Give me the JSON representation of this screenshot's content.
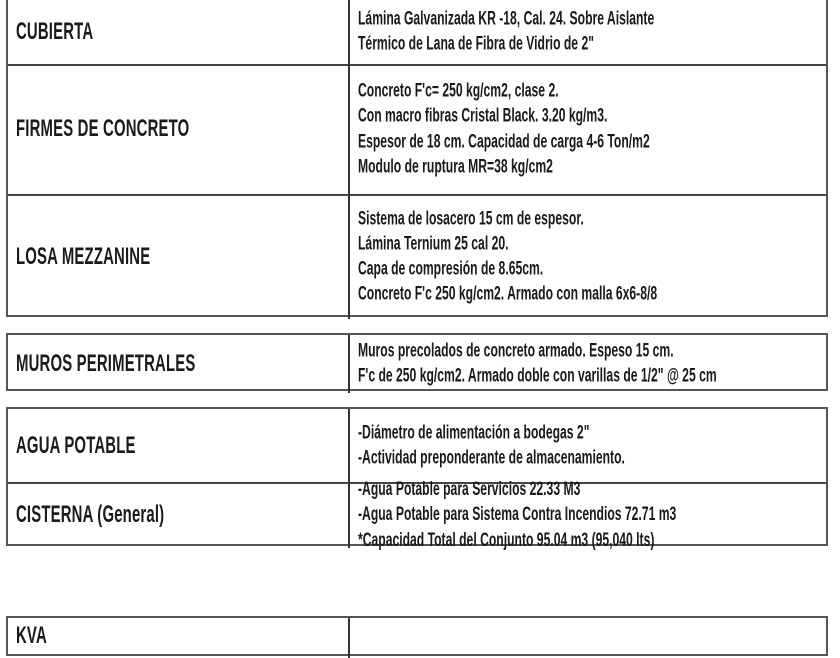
{
  "sections": [
    {
      "rows": [
        {
          "label": "CUBIERTA",
          "lines": [
            "Lámina Galvanizada KR -18,  Cal. 24. Sobre Aislante",
            "Térmico de Lana de Fibra de Vidrio de 2\""
          ]
        },
        {
          "label": "FIRMES DE CONCRETO",
          "lines": [
            "Concreto F'c= 250 kg/cm2, clase 2.",
            "Con macro fibras Cristal Black.  3.20 kg/m3.",
            "Espesor de 18 cm. Capacidad de carga 4-6 Ton/m2",
            "Modulo de ruptura MR=38 kg/cm2"
          ]
        },
        {
          "label": "LOSA MEZZANINE",
          "lines": [
            "Sistema de losacero 15 cm de espesor.",
            "Lámina Ternium 25 cal 20.",
            "Capa de compresión de 8.65cm.",
            "Concreto F'c 250 kg/cm2. Armado con malla 6x6-8/8"
          ]
        }
      ]
    },
    {
      "rows": [
        {
          "label": "MUROS PERIMETRALES",
          "lines": [
            "Muros precolados  de concreto armado. Espeso 15 cm.",
            "F'c de 250 kg/cm2. Armado doble con varillas  de 1/2\" @ 25 cm"
          ]
        }
      ]
    },
    {
      "rows": [
        {
          "label": "AGUA POTABLE",
          "lines": [
            "-Diámetro de alimentación a bodegas  2\"",
            "-Actividad preponderante de almacenamiento."
          ]
        },
        {
          "label": "CISTERNA  (General)",
          "lines": [
            "-Agua Potable para Servicios 22.33 M3",
            "-Agua Potable para Sistema Contra Incendios 72.71 m3",
            "*Capacidad Total del Conjunto 95.04 m3 (95,040 lts)"
          ]
        }
      ]
    },
    {
      "rows": [
        {
          "label": "KVA",
          "lines": []
        }
      ]
    }
  ]
}
